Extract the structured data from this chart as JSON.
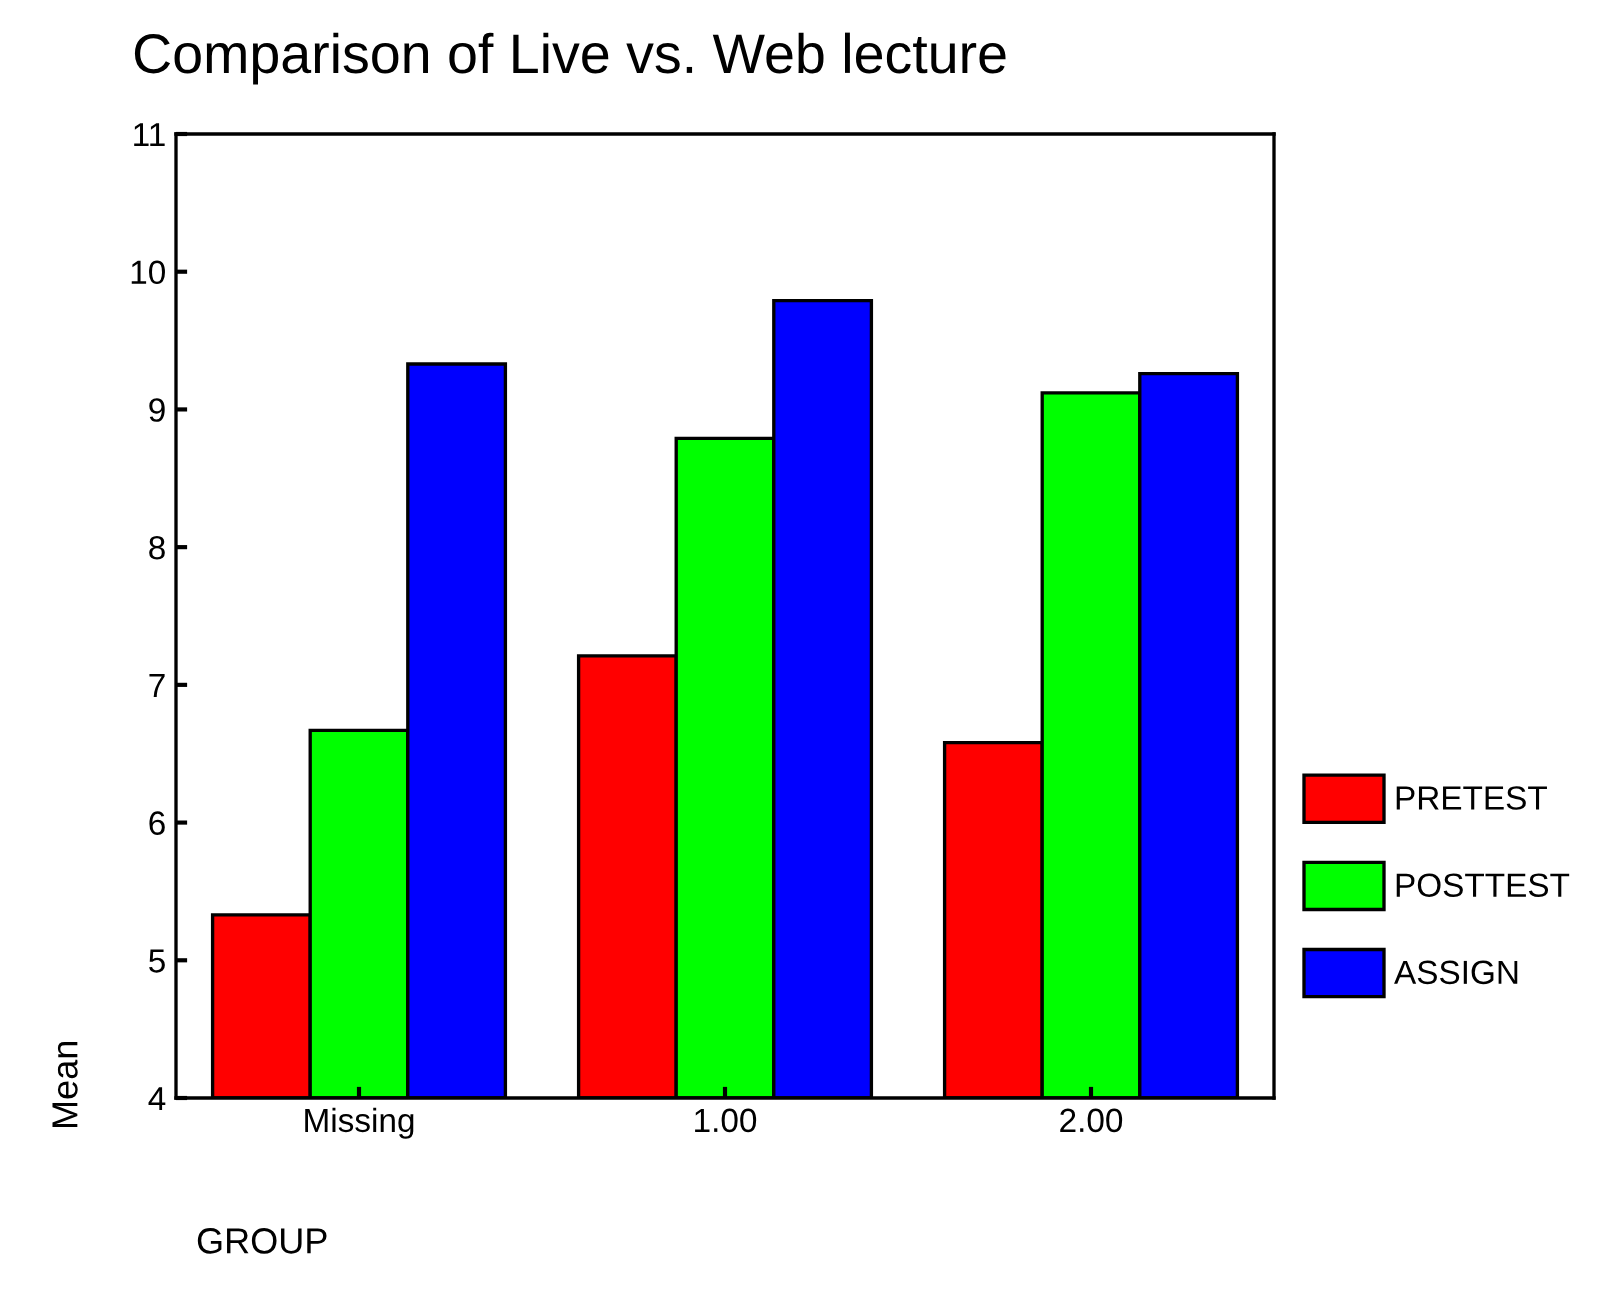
{
  "chart_data": {
    "type": "bar",
    "title": "Comparison of Live vs. Web lecture",
    "xlabel": "GROUP",
    "ylabel": "Mean",
    "categories": [
      "Missing",
      "1.00",
      "2.00"
    ],
    "series": [
      {
        "name": "PRETEST",
        "color": "#ff0000",
        "values": [
          5.33,
          7.21,
          6.58
        ]
      },
      {
        "name": "POSTTEST",
        "color": "#00ff00",
        "values": [
          6.67,
          8.79,
          9.12
        ]
      },
      {
        "name": "ASSIGN",
        "color": "#0000ff",
        "values": [
          9.33,
          9.79,
          9.26
        ]
      }
    ],
    "ylim": [
      4,
      11
    ],
    "yticks": [
      4,
      5,
      6,
      7,
      8,
      9,
      10,
      11
    ],
    "grid": false,
    "legend": "right"
  }
}
